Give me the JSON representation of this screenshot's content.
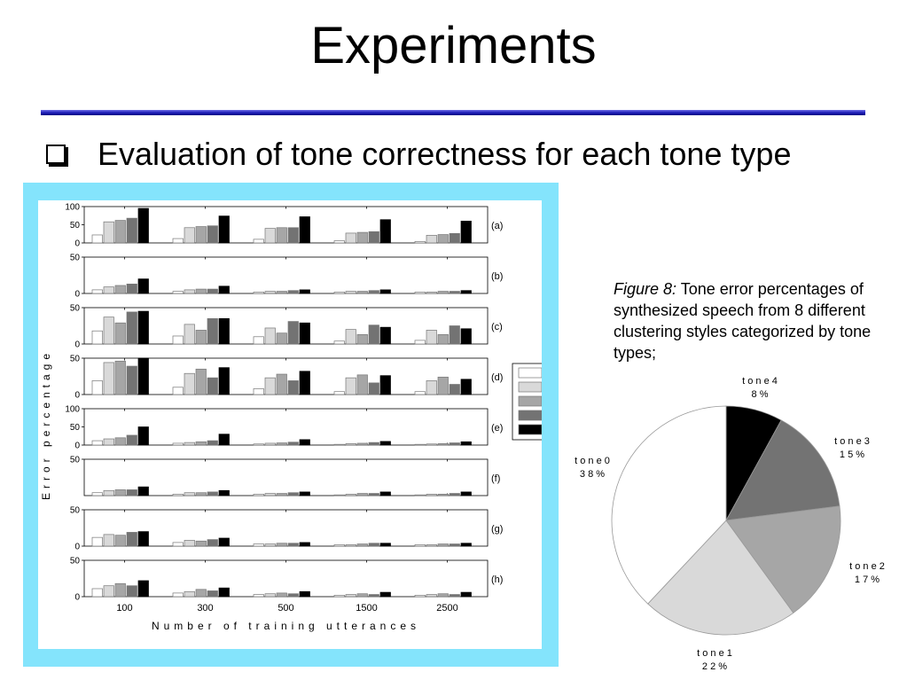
{
  "slide": {
    "title": "Experiments",
    "bullet": "Evaluation of tone correctness for each tone type",
    "caption_label": "Figure 8:",
    "caption_text": " Tone error percentages of synthesized speech from 8 different clustering styles categorized by tone types;"
  },
  "colors": {
    "frame": "#84e4fc",
    "rule": "#1a1ab4",
    "series": [
      "#ffffff",
      "#d9d9d9",
      "#a6a6a6",
      "#737373",
      "#000000"
    ]
  },
  "chart_data": [
    {
      "type": "bar",
      "xlabel": "Number of training utterances",
      "ylabel": "Error percentage",
      "categories": [
        "100",
        "300",
        "500",
        "1500",
        "2500"
      ],
      "series_names": [
        "",
        "",
        "",
        "",
        ""
      ],
      "legend": "right",
      "panels": [
        {
          "label": "(a)",
          "ylim": [
            0,
            100
          ],
          "ticks": [
            "0",
            "50",
            "100"
          ],
          "values": [
            [
              22,
              58,
              62,
              68,
              95
            ],
            [
              12,
              42,
              45,
              47,
              74
            ],
            [
              10,
              40,
              42,
              42,
              72
            ],
            [
              6,
              27,
              29,
              31,
              64
            ],
            [
              4,
              21,
              23,
              26,
              60
            ]
          ]
        },
        {
          "label": "(b)",
          "ylim": [
            0,
            50
          ],
          "ticks": [
            "0",
            "50"
          ],
          "values": [
            [
              5,
              9,
              11,
              13,
              20
            ],
            [
              3,
              5,
              6,
              6,
              10
            ],
            [
              2,
              3,
              3,
              4,
              5
            ],
            [
              2,
              3,
              3,
              4,
              5
            ],
            [
              2,
              2,
              3,
              3,
              4
            ]
          ]
        },
        {
          "label": "(c)",
          "ylim": [
            0,
            50
          ],
          "ticks": [
            "0",
            "50"
          ],
          "values": [
            [
              18,
              37,
              29,
              44,
              45
            ],
            [
              11,
              27,
              19,
              35,
              35
            ],
            [
              10,
              22,
              15,
              31,
              29
            ],
            [
              4,
              20,
              13,
              26,
              23
            ],
            [
              5,
              19,
              13,
              25,
              21
            ]
          ]
        },
        {
          "label": "(d)",
          "ylim": [
            0,
            50
          ],
          "ticks": [
            "0",
            "50"
          ],
          "values": [
            [
              19,
              44,
              46,
              39,
              50
            ],
            [
              10,
              29,
              35,
              23,
              37
            ],
            [
              8,
              23,
              28,
              19,
              32
            ],
            [
              4,
              23,
              27,
              16,
              26
            ],
            [
              4,
              19,
              24,
              14,
              21
            ]
          ]
        },
        {
          "label": "(e)",
          "ylim": [
            0,
            100
          ],
          "ticks": [
            "0",
            "50",
            "100"
          ],
          "values": [
            [
              12,
              17,
              20,
              27,
              50
            ],
            [
              5,
              7,
              9,
              12,
              30
            ],
            [
              3,
              5,
              6,
              8,
              15
            ],
            [
              2,
              4,
              5,
              7,
              10
            ],
            [
              2,
              3,
              4,
              6,
              9
            ]
          ]
        },
        {
          "label": "(f)",
          "ylim": [
            0,
            50
          ],
          "ticks": [
            "50"
          ],
          "values": [
            [
              4,
              7,
              8,
              8,
              12
            ],
            [
              2,
              4,
              4,
              5,
              7
            ],
            [
              2,
              3,
              3,
              4,
              5
            ],
            [
              1,
              2,
              3,
              3,
              5
            ],
            [
              1,
              2,
              2,
              3,
              5
            ]
          ]
        },
        {
          "label": "(g)",
          "ylim": [
            0,
            50
          ],
          "ticks": [
            "0",
            "50"
          ],
          "values": [
            [
              12,
              16,
              15,
              19,
              20
            ],
            [
              5,
              8,
              7,
              9,
              11
            ],
            [
              3,
              3,
              4,
              4,
              5
            ],
            [
              2,
              2,
              3,
              4,
              4
            ],
            [
              2,
              2,
              3,
              3,
              4
            ]
          ]
        },
        {
          "label": "(h)",
          "ylim": [
            0,
            50
          ],
          "ticks": [
            "0",
            "50"
          ],
          "values": [
            [
              11,
              15,
              18,
              15,
              22
            ],
            [
              5,
              7,
              10,
              8,
              12
            ],
            [
              3,
              4,
              5,
              4,
              7
            ],
            [
              2,
              3,
              4,
              3,
              6
            ],
            [
              2,
              3,
              4,
              3,
              6
            ]
          ]
        }
      ]
    },
    {
      "type": "pie",
      "slices": [
        {
          "name": "tone4",
          "label": "t o n e 4",
          "pct_label": "8 %",
          "value": 8,
          "color": "#000000"
        },
        {
          "name": "tone3",
          "label": "t o n e 3",
          "pct_label": "1 5 %",
          "value": 15,
          "color": "#737373"
        },
        {
          "name": "tone2",
          "label": "t o n e 2",
          "pct_label": "1 7 %",
          "value": 17,
          "color": "#a6a6a6"
        },
        {
          "name": "tone1",
          "label": "t o n e 1",
          "pct_label": "2 2 %",
          "value": 22,
          "color": "#d9d9d9"
        },
        {
          "name": "tone0",
          "label": "t o n e 0",
          "pct_label": "3 8 %",
          "value": 38,
          "color": "#ffffff"
        }
      ]
    }
  ]
}
